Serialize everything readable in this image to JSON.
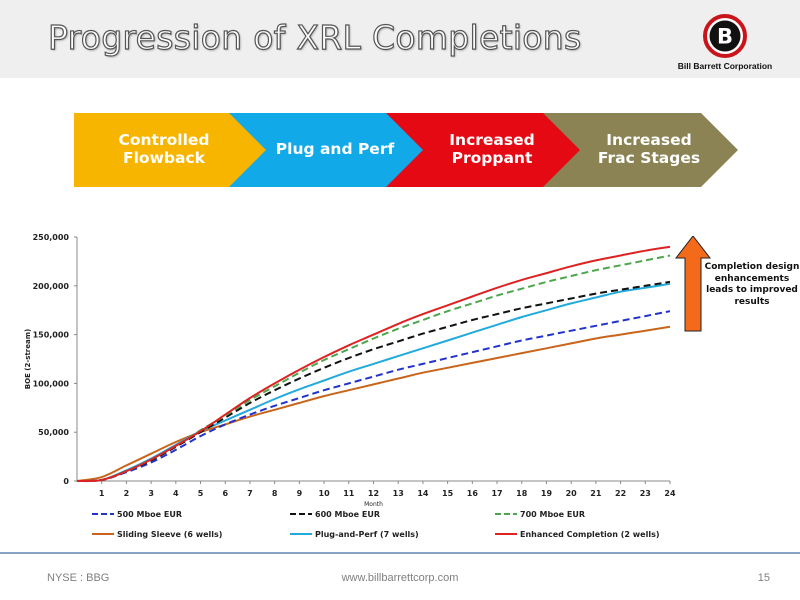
{
  "slide": {
    "title": "Progression of XRL Completions",
    "logo_text": "Bill Barrett Corporation",
    "logo_letter": "B",
    "footer_left": "NYSE : BBG",
    "footer_center": "www.billbarrettcorp.com",
    "page_number": "15"
  },
  "chevrons": [
    {
      "label": "Controlled\nFlowback",
      "color": "#F7B500"
    },
    {
      "label": "Plug and Perf",
      "color": "#12A9E8"
    },
    {
      "label": "Increased\nProppant",
      "color": "#E50914"
    },
    {
      "label": "Increased\nFrac Stages",
      "color": "#8B8354"
    }
  ],
  "callout": {
    "text": "Completion design enhancements leads to improved results",
    "arrow_color": "#F36A1A"
  },
  "chart_data": {
    "type": "line",
    "xlabel": "Month",
    "ylabel": "BOE (2-stream)",
    "xlim": [
      0,
      24
    ],
    "ylim": [
      0,
      250000
    ],
    "x_ticks": [
      1,
      2,
      3,
      4,
      5,
      6,
      7,
      8,
      9,
      10,
      11,
      12,
      13,
      14,
      15,
      16,
      17,
      18,
      19,
      20,
      21,
      22,
      23,
      24
    ],
    "y_ticks": [
      0,
      50000,
      100000,
      150000,
      200000,
      250000
    ],
    "y_tick_labels": [
      "0",
      "50,000",
      "100,000",
      "150,000",
      "200,000",
      "250,000"
    ],
    "grid": false,
    "legend_position": "bottom",
    "x": [
      0,
      1,
      2,
      3,
      4,
      5,
      6,
      7,
      8,
      9,
      10,
      11,
      12,
      13,
      14,
      15,
      16,
      17,
      18,
      19,
      20,
      21,
      22,
      23,
      24
    ],
    "series": [
      {
        "name": "500 Mboe EUR",
        "color": "#2233CC",
        "dash": "dashed",
        "values": [
          0,
          1000,
          9000,
          19000,
          32000,
          46000,
          58000,
          68000,
          77000,
          85000,
          93000,
          100000,
          107000,
          114000,
          120000,
          126000,
          132000,
          138000,
          144000,
          149000,
          154000,
          159000,
          164000,
          169000,
          174000
        ]
      },
      {
        "name": "600 Mboe EUR",
        "color": "#111111",
        "dash": "dashed",
        "values": [
          0,
          1000,
          10000,
          21000,
          35000,
          50000,
          65000,
          80000,
          93000,
          105000,
          116000,
          126000,
          135000,
          143000,
          151000,
          158000,
          165000,
          171000,
          177000,
          182000,
          187000,
          192000,
          196000,
          200000,
          204000
        ]
      },
      {
        "name": "700 Mboe EUR",
        "color": "#4CA64C",
        "dash": "dashed",
        "values": [
          0,
          1000,
          10000,
          22000,
          36000,
          52000,
          67000,
          83000,
          97000,
          111000,
          124000,
          135000,
          146000,
          156000,
          165000,
          174000,
          182000,
          190000,
          197000,
          204000,
          210000,
          216000,
          221000,
          226000,
          231000
        ]
      },
      {
        "name": "Sliding Sleeve (6 wells)",
        "color": "#C8651B",
        "dash": "solid",
        "values": [
          0,
          4000,
          16000,
          28000,
          40000,
          50000,
          58000,
          66000,
          73000,
          80000,
          87000,
          93000,
          99000,
          105000,
          111000,
          116000,
          121000,
          126000,
          131000,
          136000,
          141000,
          146000,
          150000,
          154000,
          158000
        ]
      },
      {
        "name": "Plug-and-Perf (7 wells)",
        "color": "#22AADD",
        "dash": "solid",
        "values": [
          0,
          1000,
          11000,
          23000,
          37000,
          51000,
          62000,
          73000,
          84000,
          94000,
          103000,
          112000,
          120000,
          128000,
          136000,
          144000,
          152000,
          160000,
          168000,
          175000,
          182000,
          188000,
          194000,
          198000,
          202000
        ]
      },
      {
        "name": "Enhanced Completion (2 wells)",
        "color": "#DD2222",
        "dash": "solid",
        "values": [
          0,
          1000,
          10000,
          22000,
          36000,
          51000,
          68000,
          85000,
          100000,
          114000,
          127000,
          139000,
          150000,
          161000,
          171000,
          180000,
          189000,
          198000,
          206000,
          213000,
          220000,
          226000,
          231000,
          236000,
          240000
        ]
      }
    ]
  }
}
